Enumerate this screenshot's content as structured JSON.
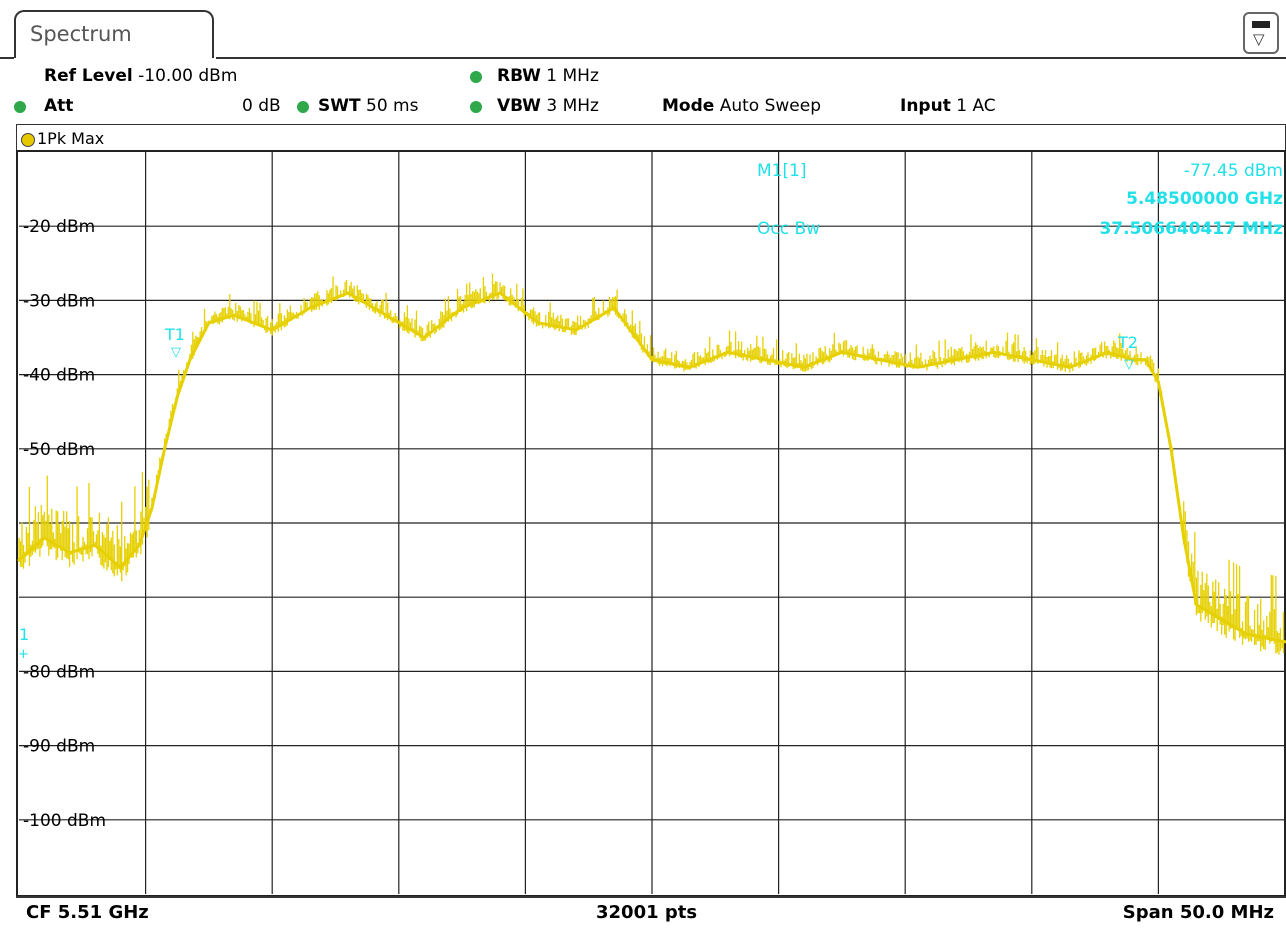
{
  "tab": {
    "label": "Spectrum"
  },
  "settings": {
    "ref_level_label": "Ref Level",
    "ref_level_value": "-10.00 dBm",
    "att_label": "Att",
    "att_value": "0 dB",
    "swt_label": "SWT",
    "swt_value": "50 ms",
    "rbw_label": "RBW",
    "rbw_value": "1 MHz",
    "vbw_label": "VBW",
    "vbw_value": "3 MHz",
    "mode_label": "Mode",
    "mode_value": "Auto Sweep",
    "input_label": "Input",
    "input_value": "1 AC"
  },
  "trace": {
    "label": "1Pk Max",
    "color": "#e6d000"
  },
  "markers": {
    "m1_label": "M1[1]",
    "m1_level": "-77.45 dBm",
    "m1_freq": "5.48500000 GHz",
    "occ_bw_label": "Occ Bw",
    "occ_bw_value": "37.506640417 MHz",
    "t1_label": "T1",
    "t2_label": "T2",
    "m1_tag": "1"
  },
  "footer": {
    "center": "CF 5.51 GHz",
    "points": "32001 pts",
    "span": "Span 50.0 MHz"
  },
  "chart_data": {
    "type": "line",
    "ylabel": "",
    "yticks": [
      "-20 dBm",
      "-30 dBm",
      "-40 dBm",
      "-50 dBm",
      "-80 dBm",
      "-90 dBm",
      "-100 dBm"
    ],
    "ylim": [
      -110,
      -10
    ],
    "xlim": [
      0,
      10
    ],
    "series": [
      {
        "color": "#e6d000",
        "x": [
          0.0,
          0.2,
          0.4,
          0.6,
          0.8,
          0.95,
          1.05,
          1.15,
          1.25,
          1.35,
          1.5,
          1.7,
          2.0,
          2.3,
          2.6,
          2.9,
          3.2,
          3.5,
          3.8,
          4.1,
          4.4,
          4.7,
          5.0,
          5.3,
          5.6,
          5.9,
          6.2,
          6.5,
          6.8,
          7.1,
          7.4,
          7.7,
          8.0,
          8.3,
          8.6,
          8.8,
          8.9,
          9.0,
          9.1,
          9.2,
          9.3,
          9.5,
          9.7,
          10.0
        ],
        "y": [
          -65,
          -62,
          -64,
          -63,
          -66,
          -63,
          -58,
          -50,
          -43,
          -38,
          -33,
          -32,
          -34,
          -31,
          -29,
          -32,
          -35,
          -31,
          -29,
          -33,
          -34,
          -31,
          -38,
          -39,
          -37,
          -38,
          -39,
          -37,
          -38,
          -39,
          -38,
          -37,
          -38,
          -39,
          -37,
          -38,
          -38,
          -41,
          -50,
          -62,
          -71,
          -73,
          -75,
          -76
        ]
      }
    ]
  }
}
